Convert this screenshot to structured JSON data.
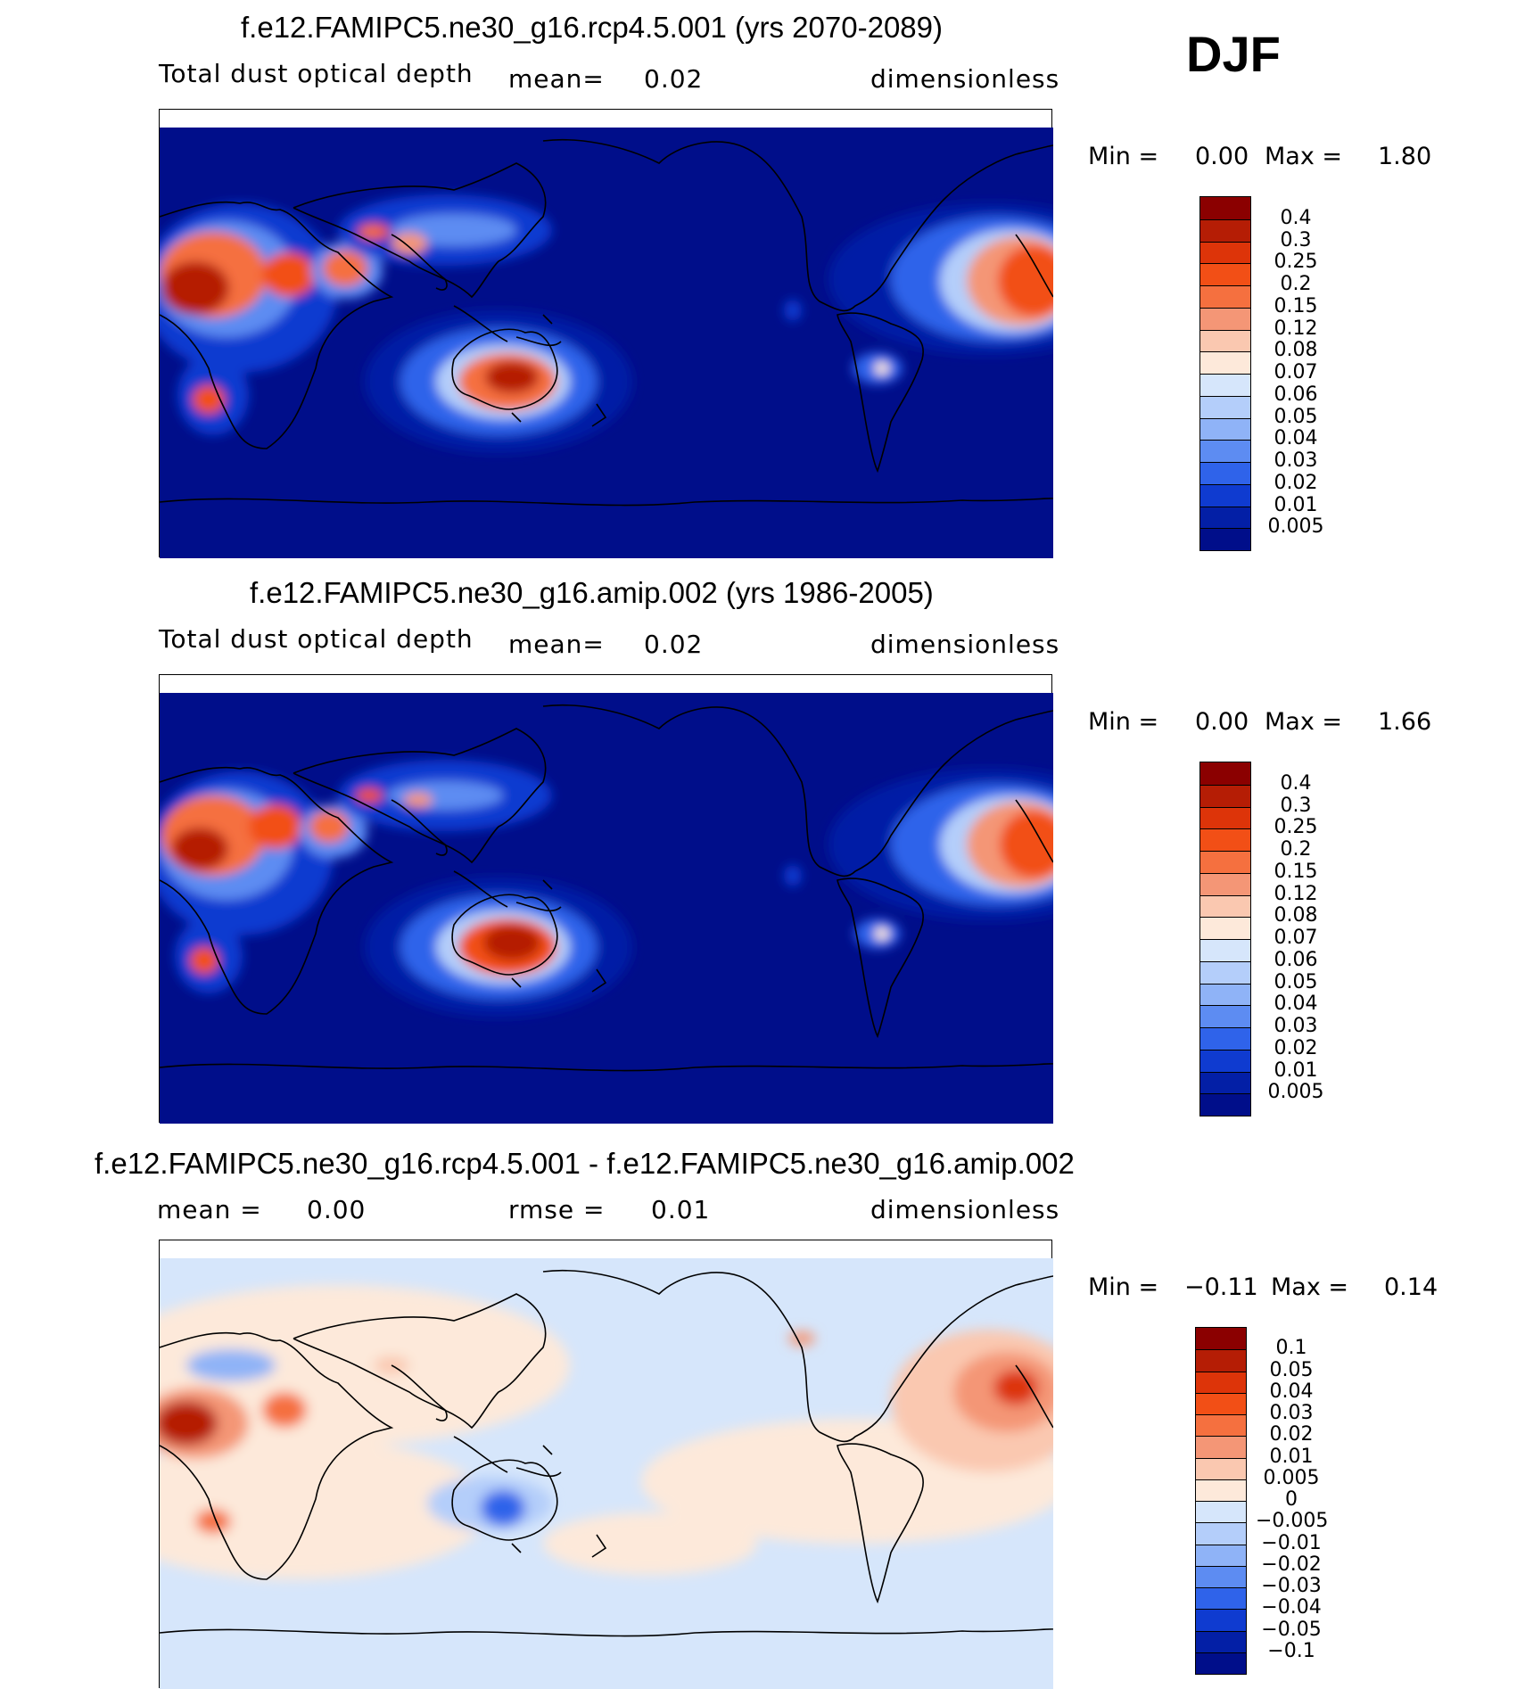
{
  "season": "DJF",
  "colors": {
    "ocean_background": "#000e8a",
    "diff_background": "#d6e6fb",
    "coastline": "#000000"
  },
  "panels": [
    {
      "id": "top",
      "title": "f.e12.FAMIPC5.ne30_g16.rcp4.5.001 (yrs 2070-2089)",
      "variable": "Total dust optical depth",
      "stat_label": "mean=",
      "stat_value": "0.02",
      "units": "dimensionless",
      "min_label": "Min =",
      "min_value": "0.00",
      "max_label": "Max =",
      "max_value": "1.80",
      "colorbar": {
        "labels": [
          "0.4",
          "0.3",
          "0.25",
          "0.2",
          "0.15",
          "0.12",
          "0.08",
          "0.07",
          "0.06",
          "0.05",
          "0.04",
          "0.03",
          "0.02",
          "0.01",
          "0.005"
        ],
        "colors": [
          "#8b0000",
          "#b51d05",
          "#dd3409",
          "#f24f16",
          "#f5703f",
          "#f49676",
          "#fac8b0",
          "#fde9da",
          "#d6e6fb",
          "#b4cefa",
          "#8fb3f7",
          "#5d8cf2",
          "#2f63ea",
          "#0f3bd0",
          "#031fa6",
          "#000e8a"
        ]
      }
    },
    {
      "id": "middle",
      "title": "f.e12.FAMIPC5.ne30_g16.amip.002 (yrs 1986-2005)",
      "variable": "Total dust optical depth",
      "stat_label": "mean=",
      "stat_value": "0.02",
      "units": "dimensionless",
      "min_label": "Min =",
      "min_value": "0.00",
      "max_label": "Max =",
      "max_value": "1.66",
      "colorbar": {
        "labels": [
          "0.4",
          "0.3",
          "0.25",
          "0.2",
          "0.15",
          "0.12",
          "0.08",
          "0.07",
          "0.06",
          "0.05",
          "0.04",
          "0.03",
          "0.02",
          "0.01",
          "0.005"
        ],
        "colors": [
          "#8b0000",
          "#b51d05",
          "#dd3409",
          "#f24f16",
          "#f5703f",
          "#f49676",
          "#fac8b0",
          "#fde9da",
          "#d6e6fb",
          "#b4cefa",
          "#8fb3f7",
          "#5d8cf2",
          "#2f63ea",
          "#0f3bd0",
          "#031fa6",
          "#000e8a"
        ]
      }
    },
    {
      "id": "bottom",
      "title": "f.e12.FAMIPC5.ne30_g16.rcp4.5.001 - f.e12.FAMIPC5.ne30_g16.amip.002",
      "stat_label": "mean =",
      "stat_value": "0.00",
      "rmse_label": "rmse =",
      "rmse_value": "0.01",
      "units": "dimensionless",
      "min_label": "Min =",
      "min_value": "−0.11",
      "max_label": "Max =",
      "max_value": "0.14",
      "colorbar": {
        "labels": [
          "0.1",
          "0.05",
          "0.04",
          "0.03",
          "0.02",
          "0.01",
          "0.005",
          "0",
          "−0.005",
          "−0.01",
          "−0.02",
          "−0.03",
          "−0.04",
          "−0.05",
          "−0.1"
        ],
        "colors": [
          "#8b0000",
          "#b51d05",
          "#dd3409",
          "#f24f16",
          "#f5703f",
          "#f49676",
          "#fac8b0",
          "#fde9da",
          "#d6e6fb",
          "#b4cefa",
          "#8fb3f7",
          "#5d8cf2",
          "#2f63ea",
          "#0f3bd0",
          "#031fa6",
          "#000e8a"
        ]
      }
    }
  ]
}
